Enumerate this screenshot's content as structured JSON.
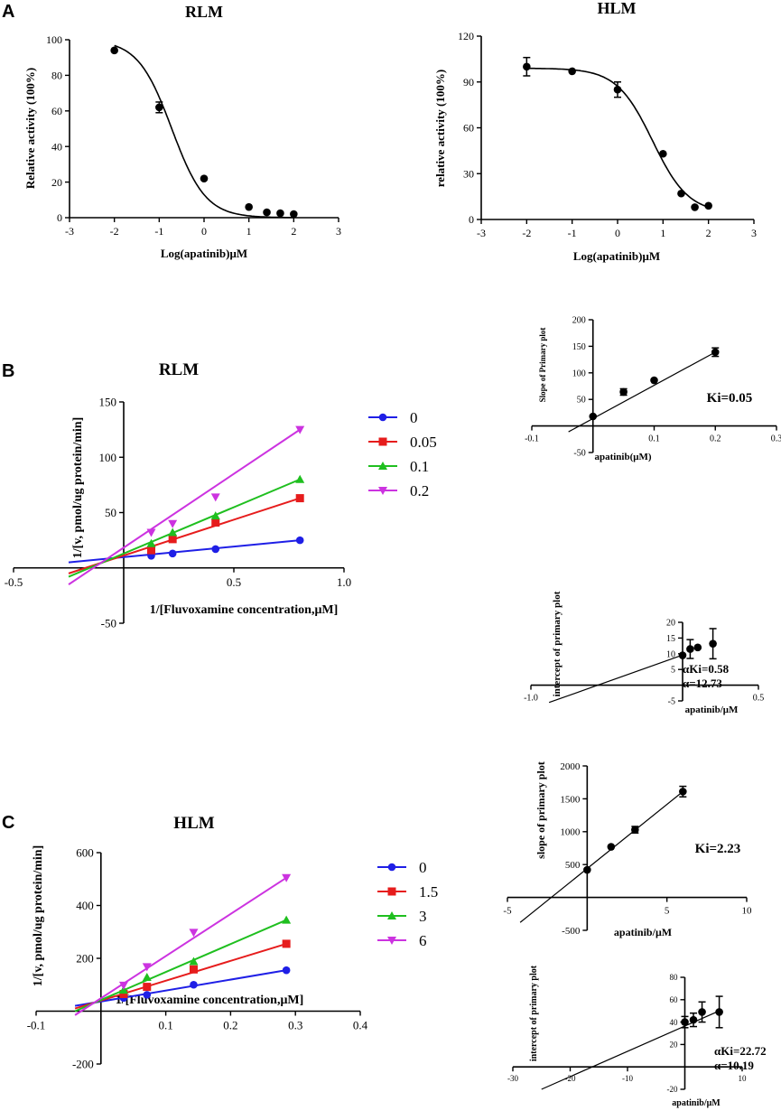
{
  "panel_letters": [
    "A",
    "B",
    "C"
  ],
  "colors": {
    "blue": "#1f1fe6",
    "red": "#e61c1c",
    "green": "#1fbf1f",
    "magenta": "#cc33e0",
    "black": "#000000"
  },
  "chart_data": [
    {
      "id": "A-RLM",
      "type": "line",
      "title": "RLM",
      "xlabel": "Log(apatinib)μM",
      "ylabel": "Relative activity (100%)",
      "xlim": [
        -3,
        3
      ],
      "ylim": [
        0,
        100
      ],
      "x_ticks": [
        -3,
        -2,
        -1,
        0,
        1,
        2,
        3
      ],
      "y_ticks": [
        0,
        20,
        40,
        60,
        80,
        100
      ],
      "points": [
        {
          "x": -2,
          "y": 94
        },
        {
          "x": -1,
          "y": 62,
          "err": 3
        },
        {
          "x": 0,
          "y": 22
        },
        {
          "x": 1,
          "y": 6
        },
        {
          "x": 1.4,
          "y": 3
        },
        {
          "x": 1.7,
          "y": 2.5
        },
        {
          "x": 2,
          "y": 2
        }
      ],
      "fit": {
        "kind": "sigmoid",
        "top": 100,
        "bottom": 0,
        "logIC50": -0.72,
        "hill": 1.15
      }
    },
    {
      "id": "A-HLM",
      "type": "line",
      "title": "HLM",
      "xlabel": "Log(apatinib)μM",
      "ylabel": "relative activity (100%)",
      "xlim": [
        -3,
        3
      ],
      "ylim": [
        0,
        120
      ],
      "x_ticks": [
        -3,
        -2,
        -1,
        0,
        1,
        2,
        3
      ],
      "y_ticks": [
        0,
        30,
        60,
        90,
        120
      ],
      "points": [
        {
          "x": -2,
          "y": 100,
          "err": 6
        },
        {
          "x": -1,
          "y": 97
        },
        {
          "x": 0,
          "y": 85,
          "err": 5
        },
        {
          "x": 1,
          "y": 43
        },
        {
          "x": 1.4,
          "y": 17
        },
        {
          "x": 1.7,
          "y": 8
        },
        {
          "x": 2,
          "y": 9
        }
      ],
      "fit": {
        "kind": "sigmoid",
        "top": 99,
        "bottom": 4,
        "logIC50": 0.77,
        "hill": 1.1
      }
    },
    {
      "id": "B-main",
      "type": "scatter",
      "title": "RLM",
      "xlabel": "1/[Fluvoxamine concentration,μM]",
      "ylabel": "1/[v, pmol/ug protein/min]",
      "xlim": [
        -0.5,
        1.0
      ],
      "ylim": [
        -50,
        150
      ],
      "x_ticks": [
        -0.5,
        0.5,
        1.0
      ],
      "y_ticks": [
        -50,
        50,
        100,
        150
      ],
      "series": [
        {
          "name": "0",
          "color": "blue",
          "marker": "circle",
          "x": [
            0.125,
            0.222,
            0.417,
            0.8
          ],
          "y": [
            11,
            13,
            17,
            25
          ],
          "line": [
            [
              -0.25,
              5
            ],
            [
              0.8,
              25
            ]
          ]
        },
        {
          "name": "0.05",
          "color": "red",
          "marker": "square",
          "x": [
            0.125,
            0.222,
            0.417,
            0.8
          ],
          "y": [
            16,
            26,
            41,
            63
          ],
          "line": [
            [
              -0.25,
              -5
            ],
            [
              0.8,
              63
            ]
          ]
        },
        {
          "name": "0.1",
          "color": "green",
          "marker": "triangle",
          "x": [
            0.125,
            0.222,
            0.417,
            0.8
          ],
          "y": [
            22,
            32,
            47,
            80
          ],
          "line": [
            [
              -0.25,
              -8
            ],
            [
              0.8,
              80
            ]
          ]
        },
        {
          "name": "0.2",
          "color": "magenta",
          "marker": "triangle-down",
          "x": [
            0.125,
            0.222,
            0.417,
            0.8
          ],
          "y": [
            32,
            40,
            64,
            125
          ],
          "line": [
            [
              -0.25,
              -15
            ],
            [
              0.8,
              125
            ]
          ]
        }
      ]
    },
    {
      "id": "B-slope",
      "type": "scatter",
      "xlabel": "apatinib(μM)",
      "ylabel": "Slope of Primary plot",
      "xlim": [
        -0.1,
        0.3
      ],
      "ylim": [
        -50,
        200
      ],
      "x_ticks": [
        -0.1,
        0.1,
        0.2,
        0.3
      ],
      "y_ticks": [
        -50,
        50,
        100,
        150,
        200
      ],
      "points": [
        {
          "x": 0,
          "y": 18
        },
        {
          "x": 0.05,
          "y": 64,
          "err": 6
        },
        {
          "x": 0.1,
          "y": 86
        },
        {
          "x": 0.2,
          "y": 139,
          "err": 8
        }
      ],
      "line": [
        [
          -0.04,
          -11
        ],
        [
          0.2,
          139
        ]
      ],
      "annotation": "Ki=0.05"
    },
    {
      "id": "B-intercept",
      "type": "scatter",
      "xlabel": "apatinib/μM",
      "ylabel": "intercept of primary plot",
      "xlim": [
        -1.0,
        0.5
      ],
      "ylim": [
        -5,
        20
      ],
      "x_ticks": [
        -1.0,
        0.5
      ],
      "y_ticks": [
        -5,
        5,
        10,
        15,
        20
      ],
      "points": [
        {
          "x": 0,
          "y": 9.5
        },
        {
          "x": 0.05,
          "y": 11.5,
          "err": 3
        },
        {
          "x": 0.1,
          "y": 12
        },
        {
          "x": 0.2,
          "y": 13.2,
          "err": 4.8
        }
      ],
      "line": [
        [
          -0.88,
          -5.5
        ],
        [
          0.0,
          9.6
        ]
      ],
      "annotation": [
        "αKi=0.58",
        "α=12.73"
      ]
    },
    {
      "id": "C-main",
      "type": "scatter",
      "title": "HLM",
      "xlabel": "1/[Fluvoxamine concentration,μM]",
      "ylabel": "1/[v, pmol/ug protein/min]",
      "xlim": [
        -0.1,
        0.4
      ],
      "ylim": [
        -200,
        600
      ],
      "x_ticks": [
        -0.1,
        0.1,
        0.2,
        0.3,
        0.4
      ],
      "y_ticks": [
        -200,
        200,
        400,
        600
      ],
      "series": [
        {
          "name": "0",
          "color": "blue",
          "marker": "circle",
          "x": [
            0.035,
            0.071,
            0.143,
            0.286
          ],
          "y": [
            50,
            62,
            100,
            155
          ],
          "line": [
            [
              -0.04,
              20
            ],
            [
              0.286,
              155
            ]
          ]
        },
        {
          "name": "1.5",
          "color": "red",
          "marker": "square",
          "x": [
            0.035,
            0.071,
            0.143,
            0.286
          ],
          "y": [
            65,
            92,
            158,
            255
          ],
          "line": [
            [
              -0.04,
              10
            ],
            [
              0.286,
              255
            ]
          ]
        },
        {
          "name": "3",
          "color": "green",
          "marker": "triangle",
          "x": [
            0.035,
            0.071,
            0.143,
            0.286
          ],
          "y": [
            80,
            128,
            188,
            345
          ],
          "line": [
            [
              -0.04,
              0
            ],
            [
              0.286,
              345
            ]
          ]
        },
        {
          "name": "6",
          "color": "magenta",
          "marker": "triangle-down",
          "x": [
            0.035,
            0.071,
            0.143,
            0.286
          ],
          "y": [
            98,
            168,
            298,
            505
          ],
          "line": [
            [
              -0.04,
              -15
            ],
            [
              0.286,
              505
            ]
          ]
        }
      ]
    },
    {
      "id": "C-slope",
      "type": "scatter",
      "xlabel": "apatinib/μM",
      "ylabel": "slope of primary plot",
      "xlim": [
        -5,
        10
      ],
      "ylim": [
        -500,
        2000
      ],
      "x_ticks": [
        -5,
        5,
        10
      ],
      "y_ticks": [
        -500,
        500,
        1000,
        1500,
        2000
      ],
      "points": [
        {
          "x": 0,
          "y": 420
        },
        {
          "x": 1.5,
          "y": 770
        },
        {
          "x": 3,
          "y": 1030,
          "err": 50
        },
        {
          "x": 6,
          "y": 1610,
          "err": 80
        }
      ],
      "line": [
        [
          -4.2,
          -380
        ],
        [
          6.0,
          1610
        ]
      ],
      "annotation": "Ki=2.23"
    },
    {
      "id": "C-intercept",
      "type": "scatter",
      "xlabel": "apatinib/μM",
      "ylabel": "intercept of primary plot",
      "xlim": [
        -30,
        10
      ],
      "ylim": [
        -20,
        80
      ],
      "x_ticks": [
        -30,
        -20,
        -10,
        10
      ],
      "y_ticks": [
        -20,
        20,
        40,
        60,
        80
      ],
      "points": [
        {
          "x": 0,
          "y": 40,
          "err": 5
        },
        {
          "x": 1.5,
          "y": 42,
          "err": 6
        },
        {
          "x": 3,
          "y": 49,
          "err": 9
        },
        {
          "x": 6,
          "y": 49,
          "err": 14
        }
      ],
      "line": [
        [
          -25,
          -20
        ],
        [
          6,
          50
        ]
      ],
      "annotation": [
        "αKi=22.72",
        "α=10.19"
      ]
    }
  ]
}
